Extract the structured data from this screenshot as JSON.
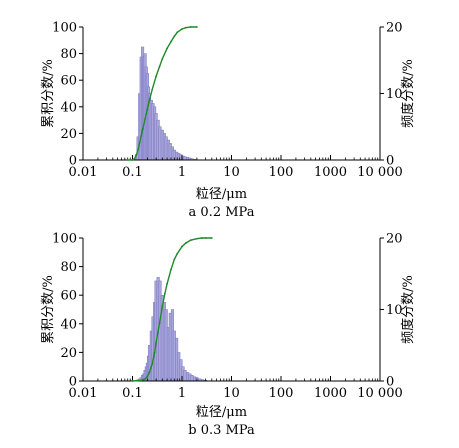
{
  "chart_data": [
    {
      "type": "bar",
      "caption": "a 0.2 MPa",
      "xlabel": "粒径/μm",
      "ylabel_left": "累积分数/%",
      "ylabel_right": "频度分数/%",
      "x_scale": "log",
      "xlim": [
        0.01,
        10000
      ],
      "ylim_left": [
        0,
        100
      ],
      "ylim_right": [
        0,
        20
      ],
      "x_tick_labels": [
        "0.01",
        "0.1",
        "1",
        "10",
        "100",
        "1000",
        "10 000"
      ],
      "y_left_tick_labels": [
        "0",
        "20",
        "40",
        "60",
        "80",
        "100"
      ],
      "y_right_tick_labels": [
        "0",
        "10",
        "20"
      ],
      "series": [
        {
          "kind": "histogram",
          "axis": "right",
          "color": "#a9a6dc",
          "x": [
            0.02,
            0.03,
            0.04,
            0.05,
            0.06,
            0.07,
            0.08,
            0.09,
            0.1,
            0.11,
            0.12,
            0.13,
            0.14,
            0.15,
            0.16,
            0.17,
            0.18,
            0.19,
            0.2,
            0.21,
            0.22,
            0.24,
            0.26,
            0.28,
            0.3,
            0.33,
            0.36,
            0.4,
            0.44,
            0.48,
            0.53,
            0.58,
            0.64,
            0.7,
            0.78,
            0.86,
            0.95,
            1.05,
            1.15,
            1.3,
            1.45,
            1.6,
            1.8
          ],
          "y": [
            0.05,
            0.05,
            0.05,
            0.05,
            0.05,
            0.05,
            0.05,
            0.05,
            0.1,
            0.2,
            0.8,
            3.5,
            10.0,
            15.5,
            17.0,
            15.5,
            16.0,
            14.0,
            13.0,
            11.0,
            10.0,
            9.0,
            8.5,
            8.0,
            7.0,
            6.0,
            5.0,
            4.5,
            4.0,
            3.5,
            3.0,
            2.5,
            2.0,
            1.5,
            1.2,
            1.0,
            0.8,
            0.6,
            0.5,
            0.4,
            0.3,
            0.2,
            0.1
          ]
        },
        {
          "kind": "cumulative",
          "axis": "left",
          "color": "#1f8a2a",
          "x": [
            0.08,
            0.1,
            0.11,
            0.12,
            0.13,
            0.14,
            0.15,
            0.16,
            0.18,
            0.2,
            0.22,
            0.25,
            0.3,
            0.35,
            0.4,
            0.5,
            0.6,
            0.7,
            0.8,
            1.0,
            1.2,
            1.5,
            2.0
          ],
          "y": [
            0,
            0,
            1,
            4,
            8,
            13,
            18,
            23,
            31,
            38,
            45,
            53,
            63,
            70,
            76,
            84,
            89,
            93,
            96,
            98.5,
            99.5,
            100,
            100
          ]
        }
      ]
    },
    {
      "type": "bar",
      "caption": "b 0.3 MPa",
      "xlabel": "粒径/μm",
      "ylabel_left": "累积分数/%",
      "ylabel_right": "频度分数/%",
      "x_scale": "log",
      "xlim": [
        0.01,
        10000
      ],
      "ylim_left": [
        0,
        100
      ],
      "ylim_right": [
        0,
        20
      ],
      "x_tick_labels": [
        "0.01",
        "0.1",
        "1",
        "10",
        "100",
        "1000",
        "10 000"
      ],
      "y_left_tick_labels": [
        "0",
        "20",
        "40",
        "60",
        "80",
        "100"
      ],
      "y_right_tick_labels": [
        "0",
        "10",
        "20"
      ],
      "series": [
        {
          "kind": "histogram",
          "axis": "right",
          "color": "#a9a6dc",
          "x": [
            0.02,
            0.03,
            0.04,
            0.05,
            0.06,
            0.07,
            0.08,
            0.09,
            0.1,
            0.11,
            0.12,
            0.13,
            0.14,
            0.15,
            0.16,
            0.17,
            0.18,
            0.19,
            0.2,
            0.21,
            0.22,
            0.24,
            0.26,
            0.28,
            0.3,
            0.33,
            0.36,
            0.4,
            0.44,
            0.48,
            0.53,
            0.58,
            0.64,
            0.7,
            0.78,
            0.86,
            0.95,
            1.05,
            1.15,
            1.3,
            1.45,
            1.6,
            1.8,
            2.0,
            2.3,
            2.6,
            3.0
          ],
          "y": [
            0.05,
            0.05,
            0.05,
            0.05,
            0.05,
            0.05,
            0.05,
            0.05,
            0.05,
            0.05,
            0.1,
            0.2,
            0.3,
            0.5,
            0.8,
            1.0,
            1.5,
            2.0,
            2.5,
            3.5,
            5.0,
            7.0,
            9.0,
            11.0,
            14.0,
            14.5,
            14.0,
            12.0,
            11.0,
            10.0,
            7.5,
            9.5,
            10.0,
            7.0,
            6.0,
            4.0,
            3.0,
            2.0,
            1.5,
            1.2,
            1.0,
            0.8,
            0.6,
            0.5,
            0.3,
            0.2,
            0.1
          ]
        },
        {
          "kind": "cumulative",
          "axis": "left",
          "color": "#1f8a2a",
          "x": [
            0.1,
            0.15,
            0.18,
            0.2,
            0.22,
            0.25,
            0.28,
            0.3,
            0.35,
            0.4,
            0.45,
            0.5,
            0.6,
            0.7,
            0.8,
            1.0,
            1.2,
            1.5,
            2.0,
            2.5,
            3.0,
            4.0
          ],
          "y": [
            0,
            0.5,
            1.5,
            3,
            6,
            12,
            20,
            27,
            40,
            52,
            61,
            68,
            78,
            85,
            89,
            94,
            96.5,
            98.5,
            99.5,
            100,
            100,
            100
          ]
        }
      ]
    }
  ]
}
